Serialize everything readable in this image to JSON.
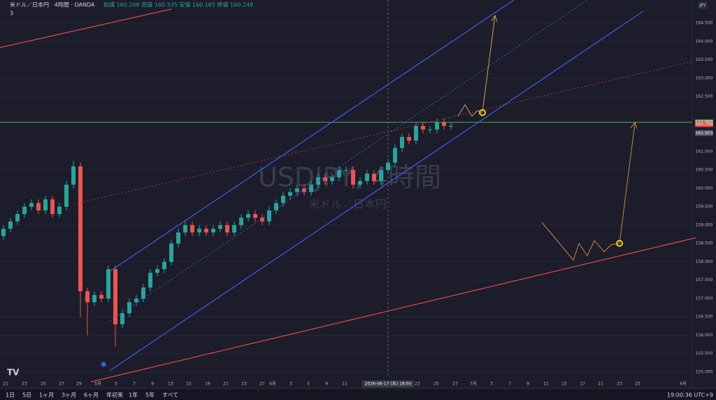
{
  "header": {
    "symbol": "米ドル／日本円 · 4時間 · OANDA",
    "ohlc": "始値 160.208 高値 160.335 安値 160.165 終値 160.248",
    "indicator_count": "3",
    "currency": "JPY"
  },
  "watermark": {
    "title": "USDJPY, 4時間",
    "subtitle": "米ドル／日本円"
  },
  "chart_data": {
    "type": "candlestick",
    "up_color": "#26a69a",
    "down_color": "#ef5350",
    "open": [
      158.7,
      158.9,
      159.1,
      159.3,
      159.5,
      159.6,
      159.4,
      159.7,
      159.3,
      159.5,
      160.1,
      160.6,
      157.2,
      156.9,
      157.1,
      157.0,
      157.8,
      156.3,
      156.6,
      156.9,
      157.0,
      157.3,
      157.7,
      157.8,
      158.0,
      158.5,
      158.8,
      159.0,
      158.8,
      158.9,
      158.8,
      158.9,
      159.0,
      158.8,
      159.0,
      159.2,
      159.3,
      159.2,
      159.1,
      159.4,
      159.6,
      159.8,
      159.9,
      160.0,
      159.9,
      160.1,
      160.3,
      160.2,
      160.3,
      160.5,
      160.5,
      160.1,
      160.2,
      160.4,
      160.2,
      160.5,
      160.7,
      161.1,
      161.4,
      161.3,
      161.7,
      161.6,
      161.6,
      161.8,
      161.7
    ],
    "high": [
      159.0,
      159.2,
      159.4,
      159.6,
      159.7,
      159.7,
      159.8,
      159.8,
      159.6,
      160.2,
      160.75,
      160.7,
      157.3,
      157.2,
      157.2,
      157.9,
      157.9,
      156.7,
      157.0,
      157.1,
      157.4,
      157.8,
      157.9,
      158.1,
      158.6,
      158.9,
      159.1,
      159.1,
      159.0,
      159.0,
      159.0,
      159.1,
      159.1,
      159.1,
      159.3,
      159.4,
      159.4,
      159.3,
      159.5,
      159.7,
      159.9,
      160.0,
      160.1,
      160.1,
      160.2,
      160.4,
      160.4,
      160.4,
      160.6,
      160.6,
      160.6,
      160.3,
      160.5,
      160.5,
      160.6,
      160.8,
      161.2,
      161.5,
      161.5,
      161.8,
      161.8,
      161.7,
      161.9,
      161.9,
      161.8
    ],
    "low": [
      158.6,
      158.8,
      159.0,
      159.2,
      159.4,
      159.3,
      159.3,
      159.2,
      159.2,
      159.4,
      160.0,
      156.5,
      156.0,
      156.8,
      156.9,
      156.9,
      155.7,
      156.2,
      156.5,
      156.8,
      156.9,
      157.2,
      157.6,
      157.7,
      157.9,
      158.4,
      158.7,
      158.7,
      158.7,
      158.7,
      158.7,
      158.8,
      158.7,
      158.7,
      158.9,
      159.1,
      159.1,
      159.0,
      159.0,
      159.3,
      159.5,
      159.7,
      159.8,
      159.8,
      159.8,
      160.0,
      160.1,
      160.1,
      160.2,
      160.4,
      160.0,
      160.0,
      160.1,
      160.1,
      160.1,
      160.4,
      160.6,
      161.0,
      161.2,
      161.2,
      161.5,
      161.5,
      161.5,
      161.6,
      161.6
    ],
    "close": [
      158.9,
      159.1,
      159.3,
      159.5,
      159.6,
      159.4,
      159.7,
      159.3,
      159.5,
      160.1,
      160.6,
      157.2,
      156.9,
      157.1,
      157.0,
      157.8,
      156.3,
      156.6,
      156.9,
      157.0,
      157.3,
      157.7,
      157.8,
      158.0,
      158.5,
      158.8,
      159.0,
      158.8,
      158.9,
      158.8,
      158.9,
      159.0,
      158.8,
      159.0,
      159.2,
      159.3,
      159.2,
      159.1,
      159.4,
      159.6,
      159.8,
      159.9,
      160.0,
      159.9,
      160.1,
      160.3,
      160.2,
      160.3,
      160.5,
      160.5,
      160.1,
      160.2,
      160.4,
      160.2,
      160.5,
      160.7,
      161.1,
      161.4,
      161.3,
      161.7,
      161.6,
      161.6,
      161.8,
      161.7,
      161.7
    ],
    "ylim": [
      154.5,
      165.1
    ],
    "yticks": [
      {
        "value": 155,
        "label": "155.000"
      },
      {
        "value": 155.5,
        "label": "155.500"
      },
      {
        "value": 156,
        "label": "156.000"
      },
      {
        "value": 156.5,
        "label": "156.500"
      },
      {
        "value": 157,
        "label": "157.000"
      },
      {
        "value": 157.5,
        "label": "157.500"
      },
      {
        "value": 158,
        "label": "158.000"
      },
      {
        "value": 158.5,
        "label": "158.500"
      },
      {
        "value": 159,
        "label": "159.000"
      },
      {
        "value": 159.5,
        "label": "159.500"
      },
      {
        "value": 160,
        "label": "160.000"
      },
      {
        "value": 160.5,
        "label": "160.500"
      },
      {
        "value": 161,
        "label": "161.000"
      },
      {
        "value": 162.5,
        "label": "162.500"
      },
      {
        "value": 163,
        "label": "163.000"
      },
      {
        "value": 163.5,
        "label": "163.500"
      },
      {
        "value": 164,
        "label": "164.000"
      },
      {
        "value": 164.5,
        "label": "164.500"
      }
    ],
    "price_labels": [
      {
        "value": 161.8,
        "label": "161.800",
        "color": "#4caf50"
      },
      {
        "value": 161.75,
        "label": "161.750",
        "color": "#ef5350"
      },
      {
        "value": 161.503,
        "label": "161.503",
        "color": "#50535e"
      }
    ],
    "x_labels": [
      "21",
      "23",
      "25",
      "27",
      "29",
      "5月",
      "5",
      "7",
      "9",
      "13",
      "15",
      "19",
      "21",
      "23",
      "27",
      "6月",
      "3",
      "5",
      "9",
      "11",
      "2026-06-17 (水)  18:00",
      "23",
      "25",
      "27",
      "7月",
      "3",
      "7",
      "9",
      "11",
      "15",
      "17",
      "21",
      "23",
      "25",
      "6月"
    ]
  },
  "toolbar": {
    "ranges": [
      "1日",
      "5日",
      "1ヶ月",
      "3ヶ月",
      "6ヶ月",
      "年初来",
      "1年",
      "5年",
      "すべて"
    ],
    "clock": "19:00:36 UTC+9"
  }
}
